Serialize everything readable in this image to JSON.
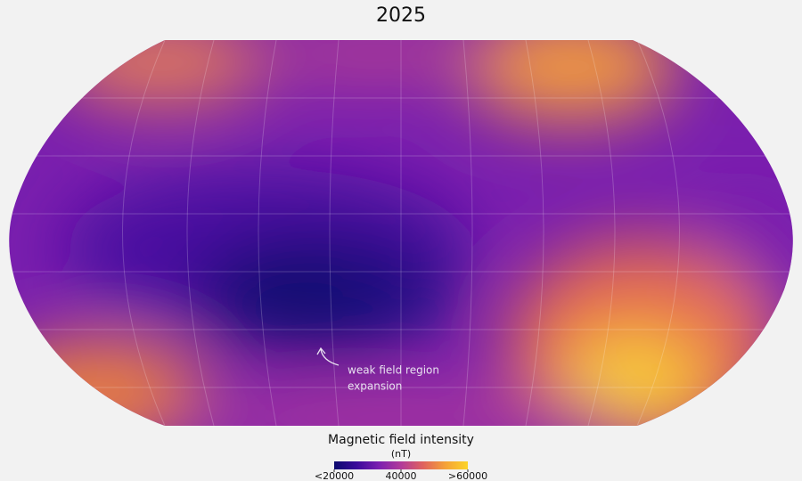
{
  "header": {
    "title": "2025"
  },
  "map": {
    "annotation": [
      "weak field region",
      "expansion"
    ]
  },
  "colorbar": {
    "title": "Magnetic field intensity",
    "unit": "(nT)",
    "range": [
      20000,
      60000
    ],
    "ticks": [
      {
        "value": 20000,
        "label": "<20000"
      },
      40000,
      {
        "value": 60000,
        "label": ">60000"
      }
    ],
    "colors": [
      "#0b0a6e",
      "#3a0a9a",
      "#7b1fb0",
      "#b13a9a",
      "#e0635e",
      "#f5a238",
      "#fcd42a"
    ]
  }
}
